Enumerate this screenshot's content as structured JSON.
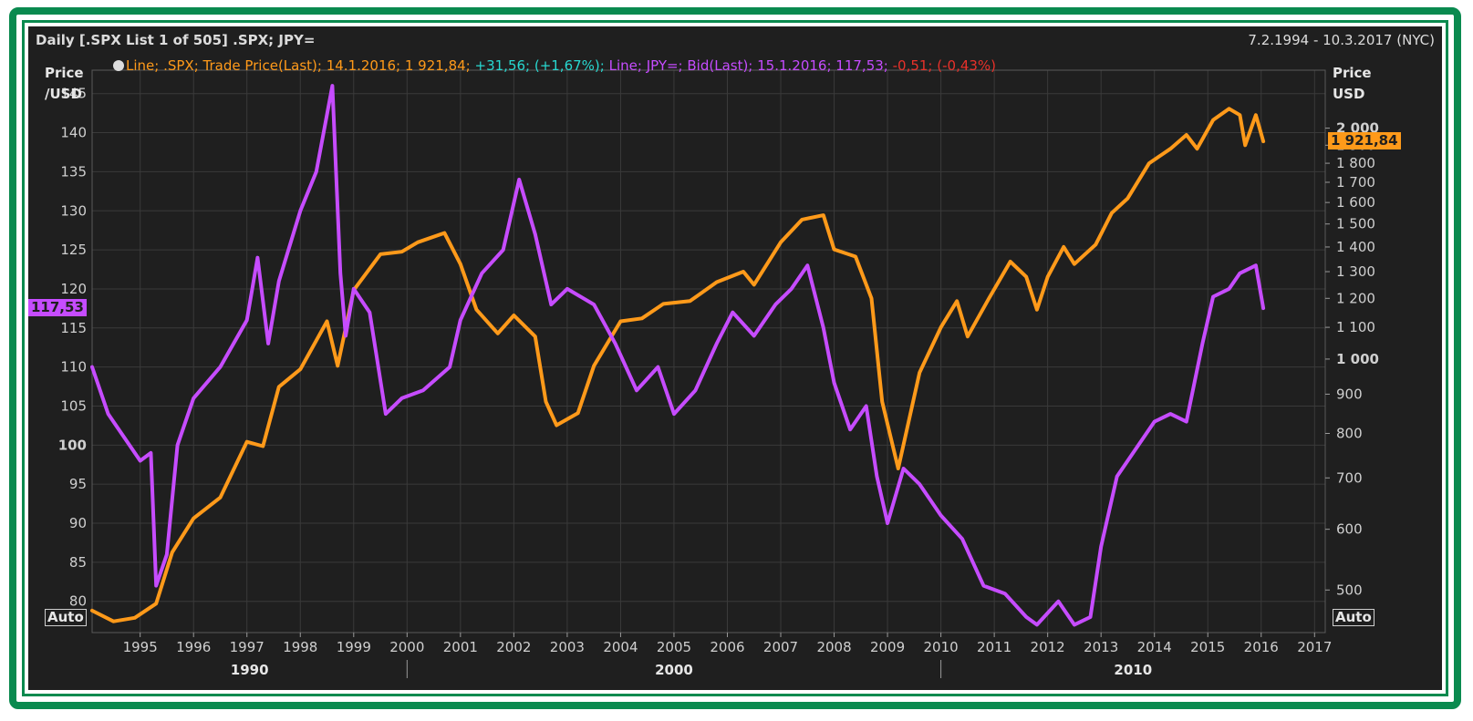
{
  "header": {
    "title": "Daily [.SPX List 1 of 505] .SPX; JPY=",
    "date_range": "7.2.1994 - 10.3.2017 (NYC)"
  },
  "axes": {
    "left_title_line1": "Price",
    "left_title_line2": "/USD",
    "right_title_line1": "Price",
    "right_title_line2": "USD",
    "auto_left": "Auto",
    "auto_right": "Auto"
  },
  "legend": {
    "spx_text": "Line; .SPX; Trade Price(Last); 14.1.2016; 1 921,84;",
    "spx_change": "+31,56; (+1,67%);",
    "jpy_text": "Line; JPY=; Bid(Last); 15.1.2016; 117,53;",
    "jpy_change": "-0,51; (-0,43%)"
  },
  "badges": {
    "jpy_last": "117,53",
    "spx_last": "1 921,84"
  },
  "colors": {
    "spx": "#ff9a1a",
    "jpy": "#c64cff",
    "change_up": "#28d8d0",
    "change_down": "#e8312a",
    "background": "#1f1f1f",
    "frame": "#0a8a4f"
  },
  "chart_data": {
    "type": "line",
    "x_axis": {
      "year_ticks": [
        "1995",
        "1996",
        "1997",
        "1998",
        "1999",
        "2000",
        "2001",
        "2002",
        "2003",
        "2004",
        "2005",
        "2006",
        "2007",
        "2008",
        "2009",
        "2010",
        "2011",
        "2012",
        "2013",
        "2014",
        "2015",
        "2016",
        "2017"
      ],
      "decade_labels": [
        "1990",
        "2000",
        "2010"
      ],
      "range": [
        1994.1,
        2017.2
      ]
    },
    "y_left": {
      "range": [
        76,
        148
      ],
      "ticks": [
        80,
        85,
        90,
        95,
        100,
        105,
        110,
        115,
        120,
        125,
        130,
        135,
        140,
        145
      ],
      "tick_labels": [
        "80",
        "85",
        "90",
        "95",
        "100",
        "105",
        "110",
        "115",
        "120",
        "125",
        "130",
        "135",
        "140",
        "145"
      ],
      "bold_ticks": [
        "100"
      ]
    },
    "y_right": {
      "scale": "log",
      "range": [
        440,
        2380
      ],
      "ticks": [
        500,
        600,
        700,
        800,
        900,
        1000,
        1100,
        1200,
        1300,
        1400,
        1500,
        1600,
        1700,
        1800,
        1900,
        2000
      ],
      "tick_labels": [
        "500",
        "600",
        "700",
        "800",
        "900",
        "1 000",
        "1 100",
        "1 200",
        "1 300",
        "1 400",
        "1 500",
        "1 600",
        "1 700",
        "1 800",
        "1 900",
        "2 000"
      ],
      "bold_ticks": [
        "1 000",
        "2 000"
      ]
    },
    "grid": true,
    "series": [
      {
        "name": ".SPX",
        "axis": "right",
        "x": [
          1994.1,
          1994.5,
          1994.9,
          1995.3,
          1995.6,
          1996.0,
          1996.5,
          1997.0,
          1997.3,
          1997.6,
          1998.0,
          1998.5,
          1998.7,
          1999.0,
          1999.5,
          1999.9,
          2000.2,
          2000.7,
          2001.0,
          2001.3,
          2001.7,
          2002.0,
          2002.4,
          2002.6,
          2002.8,
          2003.2,
          2003.5,
          2004.0,
          2004.4,
          2004.8,
          2005.3,
          2005.8,
          2006.3,
          2006.5,
          2007.0,
          2007.4,
          2007.8,
          2008.0,
          2008.4,
          2008.7,
          2008.9,
          2009.2,
          2009.6,
          2010.0,
          2010.3,
          2010.5,
          2010.9,
          2011.3,
          2011.6,
          2011.8,
          2012.0,
          2012.3,
          2012.5,
          2012.9,
          2013.2,
          2013.5,
          2013.9,
          2014.3,
          2014.6,
          2014.8,
          2015.1,
          2015.4,
          2015.6,
          2015.7,
          2015.9,
          2016.04
        ],
        "values": [
          470,
          455,
          460,
          480,
          560,
          620,
          660,
          780,
          770,
          920,
          970,
          1120,
          980,
          1230,
          1370,
          1380,
          1420,
          1460,
          1330,
          1160,
          1080,
          1140,
          1070,
          880,
          820,
          850,
          980,
          1120,
          1130,
          1180,
          1190,
          1260,
          1300,
          1250,
          1420,
          1520,
          1540,
          1390,
          1360,
          1200,
          880,
          720,
          960,
          1100,
          1190,
          1070,
          1200,
          1340,
          1280,
          1160,
          1280,
          1400,
          1330,
          1410,
          1550,
          1620,
          1800,
          1880,
          1960,
          1880,
          2050,
          2120,
          2080,
          1900,
          2080,
          1922
        ]
      },
      {
        "name": "JPY=",
        "axis": "left",
        "x": [
          1994.1,
          1994.4,
          1994.7,
          1995.0,
          1995.2,
          1995.3,
          1995.5,
          1995.7,
          1996.0,
          1996.5,
          1997.0,
          1997.2,
          1997.4,
          1997.6,
          1998.0,
          1998.3,
          1998.6,
          1998.75,
          1998.85,
          1999.0,
          1999.3,
          1999.6,
          1999.9,
          2000.3,
          2000.8,
          2001.0,
          2001.4,
          2001.8,
          2002.1,
          2002.4,
          2002.7,
          2003.0,
          2003.5,
          2003.9,
          2004.3,
          2004.7,
          2005.0,
          2005.4,
          2005.8,
          2006.1,
          2006.5,
          2006.9,
          2007.2,
          2007.5,
          2007.8,
          2008.0,
          2008.3,
          2008.6,
          2008.8,
          2009.0,
          2009.3,
          2009.6,
          2010.0,
          2010.4,
          2010.8,
          2011.2,
          2011.6,
          2011.8,
          2012.2,
          2012.5,
          2012.8,
          2013.0,
          2013.3,
          2013.7,
          2014.0,
          2014.3,
          2014.6,
          2014.9,
          2015.1,
          2015.4,
          2015.6,
          2015.9,
          2016.04
        ],
        "values": [
          110,
          104,
          101,
          98,
          99,
          82,
          86,
          100,
          106,
          110,
          116,
          124,
          113,
          121,
          130,
          135,
          146,
          122,
          114,
          120,
          117,
          104,
          106,
          107,
          110,
          116,
          122,
          125,
          134,
          127,
          118,
          120,
          118,
          113,
          107,
          110,
          104,
          107,
          113,
          117,
          114,
          118,
          120,
          123,
          115,
          108,
          102,
          105,
          96,
          90,
          97,
          95,
          91,
          88,
          82,
          81,
          78,
          77,
          80,
          77,
          78,
          87,
          96,
          100,
          103,
          104,
          103,
          113,
          119,
          120,
          122,
          123,
          117.53
        ]
      }
    ]
  }
}
